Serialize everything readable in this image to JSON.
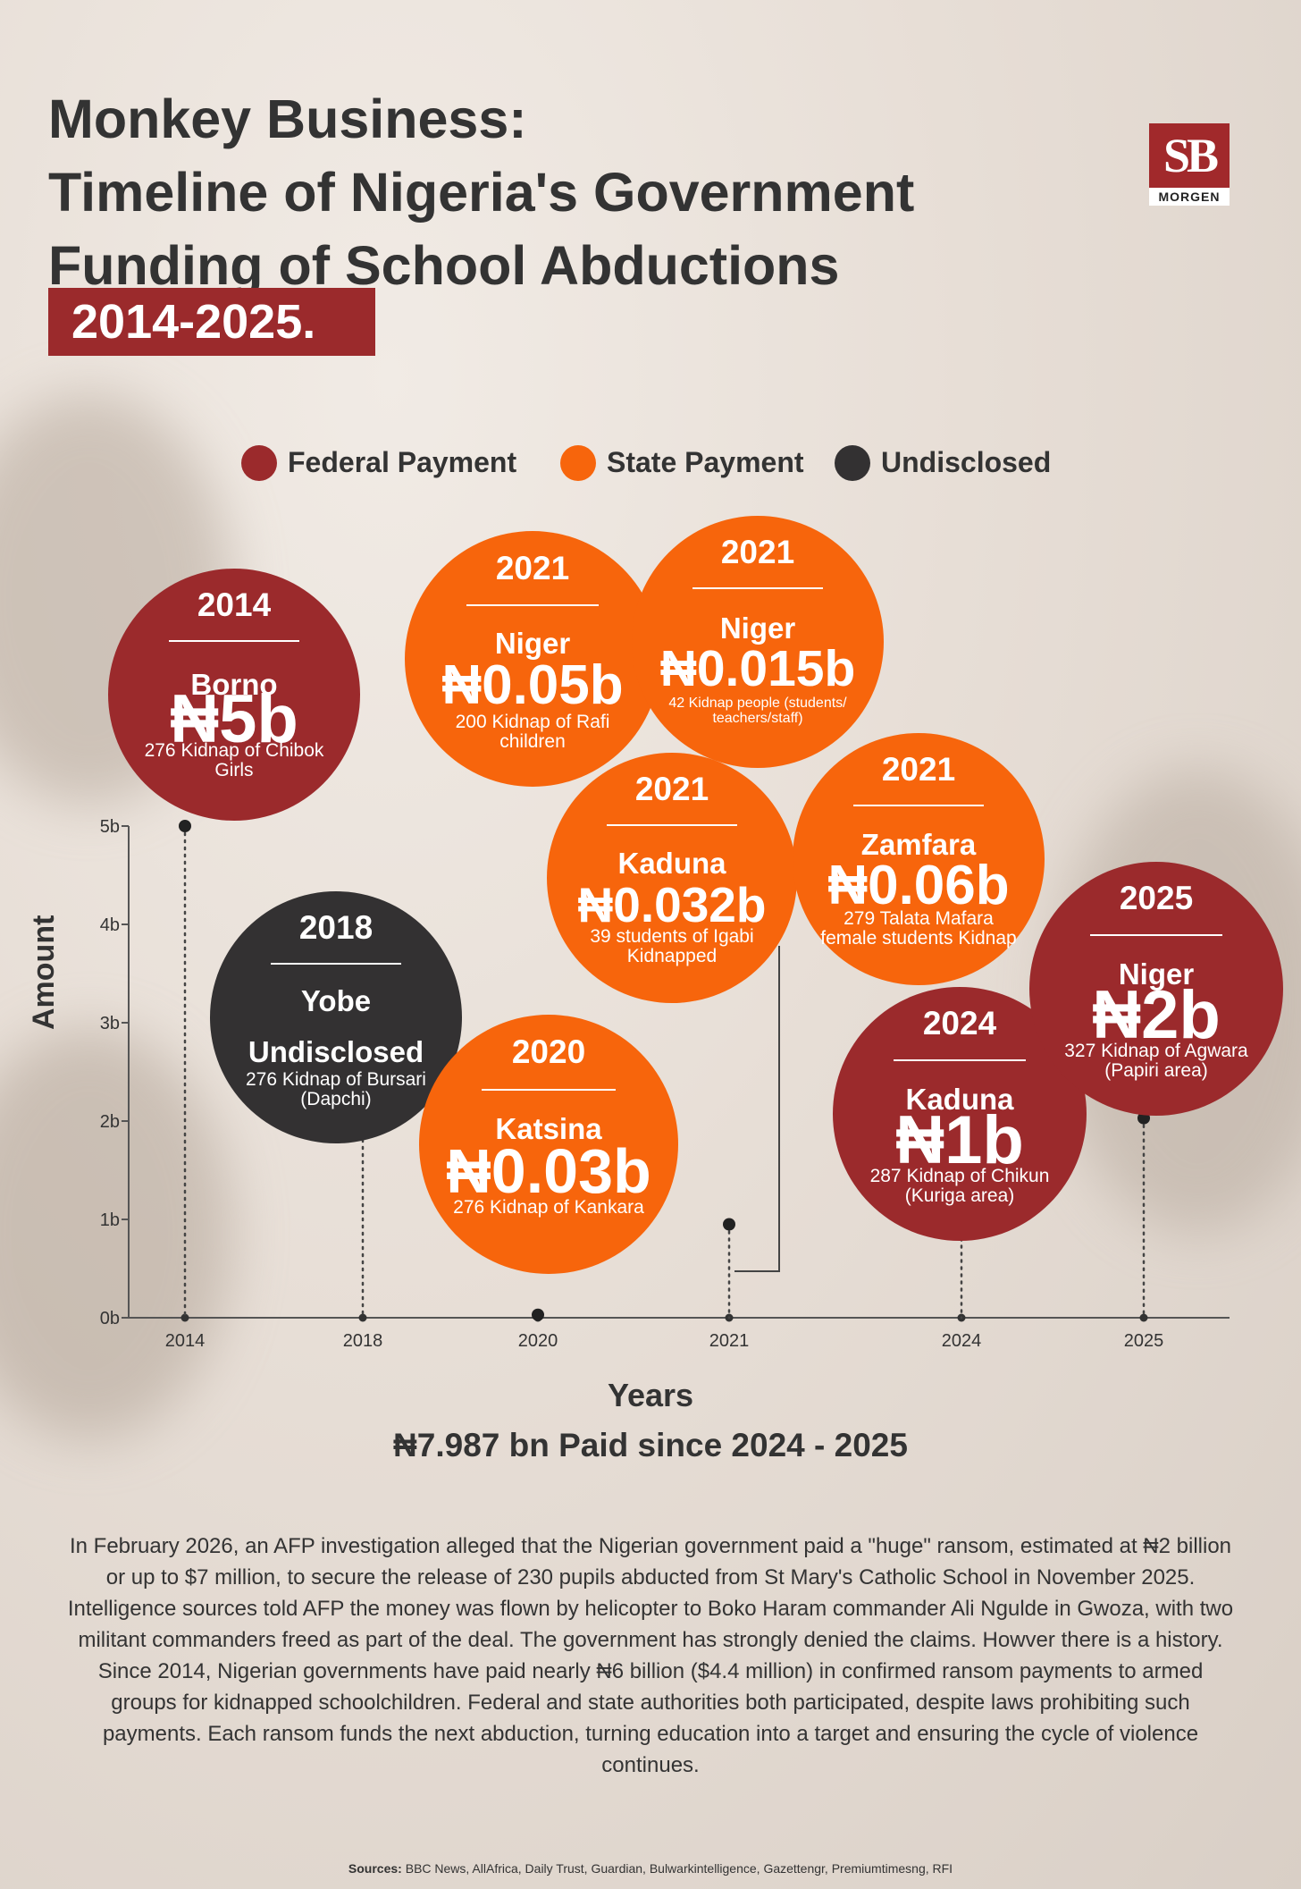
{
  "header": {
    "title_lines": [
      "Monkey Business:",
      "Timeline of Nigeria's Government",
      "Funding of School Abductions"
    ],
    "year_range": "2014-2025."
  },
  "logo": {
    "initials": "SB",
    "name": "MORGEN"
  },
  "colors": {
    "federal": "#9b2a2c",
    "state": "#f7650c",
    "undisclosed": "#333132"
  },
  "legend": [
    {
      "label": "Federal Payment",
      "color": "#9b2a2c"
    },
    {
      "label": "State Payment",
      "color": "#f7650c"
    },
    {
      "label": "Undisclosed",
      "color": "#333132"
    }
  ],
  "chart_data": {
    "type": "scatter",
    "xlabel": "Years",
    "ylabel": "Amount",
    "x_ticks": [
      "2014",
      "2018",
      "2020",
      "2021",
      "2024",
      "2025"
    ],
    "y_ticks": [
      "0b",
      "1b",
      "2b",
      "3b",
      "4b",
      "5b"
    ],
    "ylim": [
      0,
      5
    ],
    "points": [
      {
        "year": "2014",
        "y": 5
      },
      {
        "year": "2018",
        "y": 2.1
      },
      {
        "year": "2020",
        "y": 0.03
      },
      {
        "year": "2021",
        "y": 0.95
      },
      {
        "year": "2024",
        "y": 0.95
      },
      {
        "year": "2025",
        "y": 2.03
      }
    ],
    "bubbles": [
      {
        "year": "2014",
        "state": "Borno",
        "amount": "₦5b",
        "description": "276 Kidnap of Chibok Girls",
        "category": "federal"
      },
      {
        "year": "2018",
        "state": "Yobe",
        "amount": "Undisclosed",
        "description": "276 Kidnap of Bursari (Dapchi)",
        "category": "undisclosed"
      },
      {
        "year": "2021",
        "state": "Niger",
        "amount": "₦0.05b",
        "description": "200 Kidnap of Rafi children",
        "category": "state"
      },
      {
        "year": "2021",
        "state": "Niger",
        "amount": "₦0.015b",
        "description": "42 Kidnap people (students/ teachers/staff)",
        "category": "state"
      },
      {
        "year": "2021",
        "state": "Kaduna",
        "amount": "₦0.032b",
        "description": "39 students of Igabi Kidnapped",
        "category": "state"
      },
      {
        "year": "2021",
        "state": "Zamfara",
        "amount": "₦0.06b",
        "description": "279 Talata Mafara female students Kidnap",
        "category": "state"
      },
      {
        "year": "2020",
        "state": "Katsina",
        "amount": "₦0.03b",
        "description": "276 Kidnap of Kankara",
        "category": "state"
      },
      {
        "year": "2024",
        "state": "Kaduna",
        "amount": "₦1b",
        "description": "287 Kidnap of Chikun (Kuriga area)",
        "category": "federal"
      },
      {
        "year": "2025",
        "state": "Niger",
        "amount": "₦2b",
        "description": "327 Kidnap of Agwara (Papiri area)",
        "category": "federal"
      }
    ]
  },
  "summary": "₦7.987 bn Paid since 2024 - 2025",
  "body": "In February 2026, an AFP investigation alleged that the Nigerian government paid a \"huge\" ransom, estimated at ₦2 billion or up to $7 million, to secure the release of 230 pupils abducted from St Mary's Catholic School in November 2025. Intelligence sources told AFP the money was flown by helicopter to Boko Haram commander Ali Ngulde in Gwoza, with two militant commanders freed as part of the deal. The government has strongly denied the claims. Howver there is a history. Since 2014, Nigerian governments have paid nearly ₦6 billion ($4.4 million) in confirmed ransom payments to armed groups for kidnapped schoolchildren. Federal and state authorities both participated, despite laws prohibiting such payments. Each ransom funds the next abduction, turning education into a target and ensuring the cycle of violence continues.",
  "sources": {
    "label": "Sources:",
    "text": " BBC News, AllAfrica, Daily Trust, Guardian, Bulwarkintelligence, Gazettengr, Premiumtimesng, RFI"
  }
}
